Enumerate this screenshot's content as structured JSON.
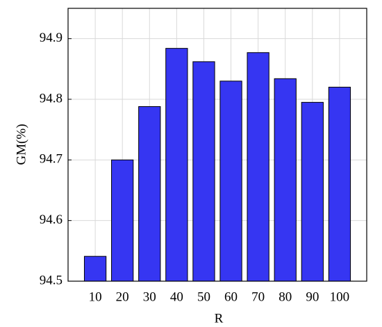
{
  "chart_data": {
    "type": "bar",
    "x_label": "R",
    "y_label": "GM(%)",
    "x": [
      10,
      20,
      30,
      40,
      50,
      60,
      70,
      80,
      90,
      100
    ],
    "values": [
      94.541,
      94.7,
      94.788,
      94.884,
      94.862,
      94.83,
      94.877,
      94.834,
      94.795,
      94.82
    ],
    "color": "#3636f2",
    "xlim": [
      0,
      110
    ],
    "xticks": [
      10,
      20,
      30,
      40,
      50,
      60,
      70,
      80,
      90,
      100
    ],
    "ylim": [
      94.5,
      94.95
    ],
    "yticks": [
      94.5,
      94.6,
      94.7,
      94.8,
      94.9
    ],
    "grid": true
  }
}
